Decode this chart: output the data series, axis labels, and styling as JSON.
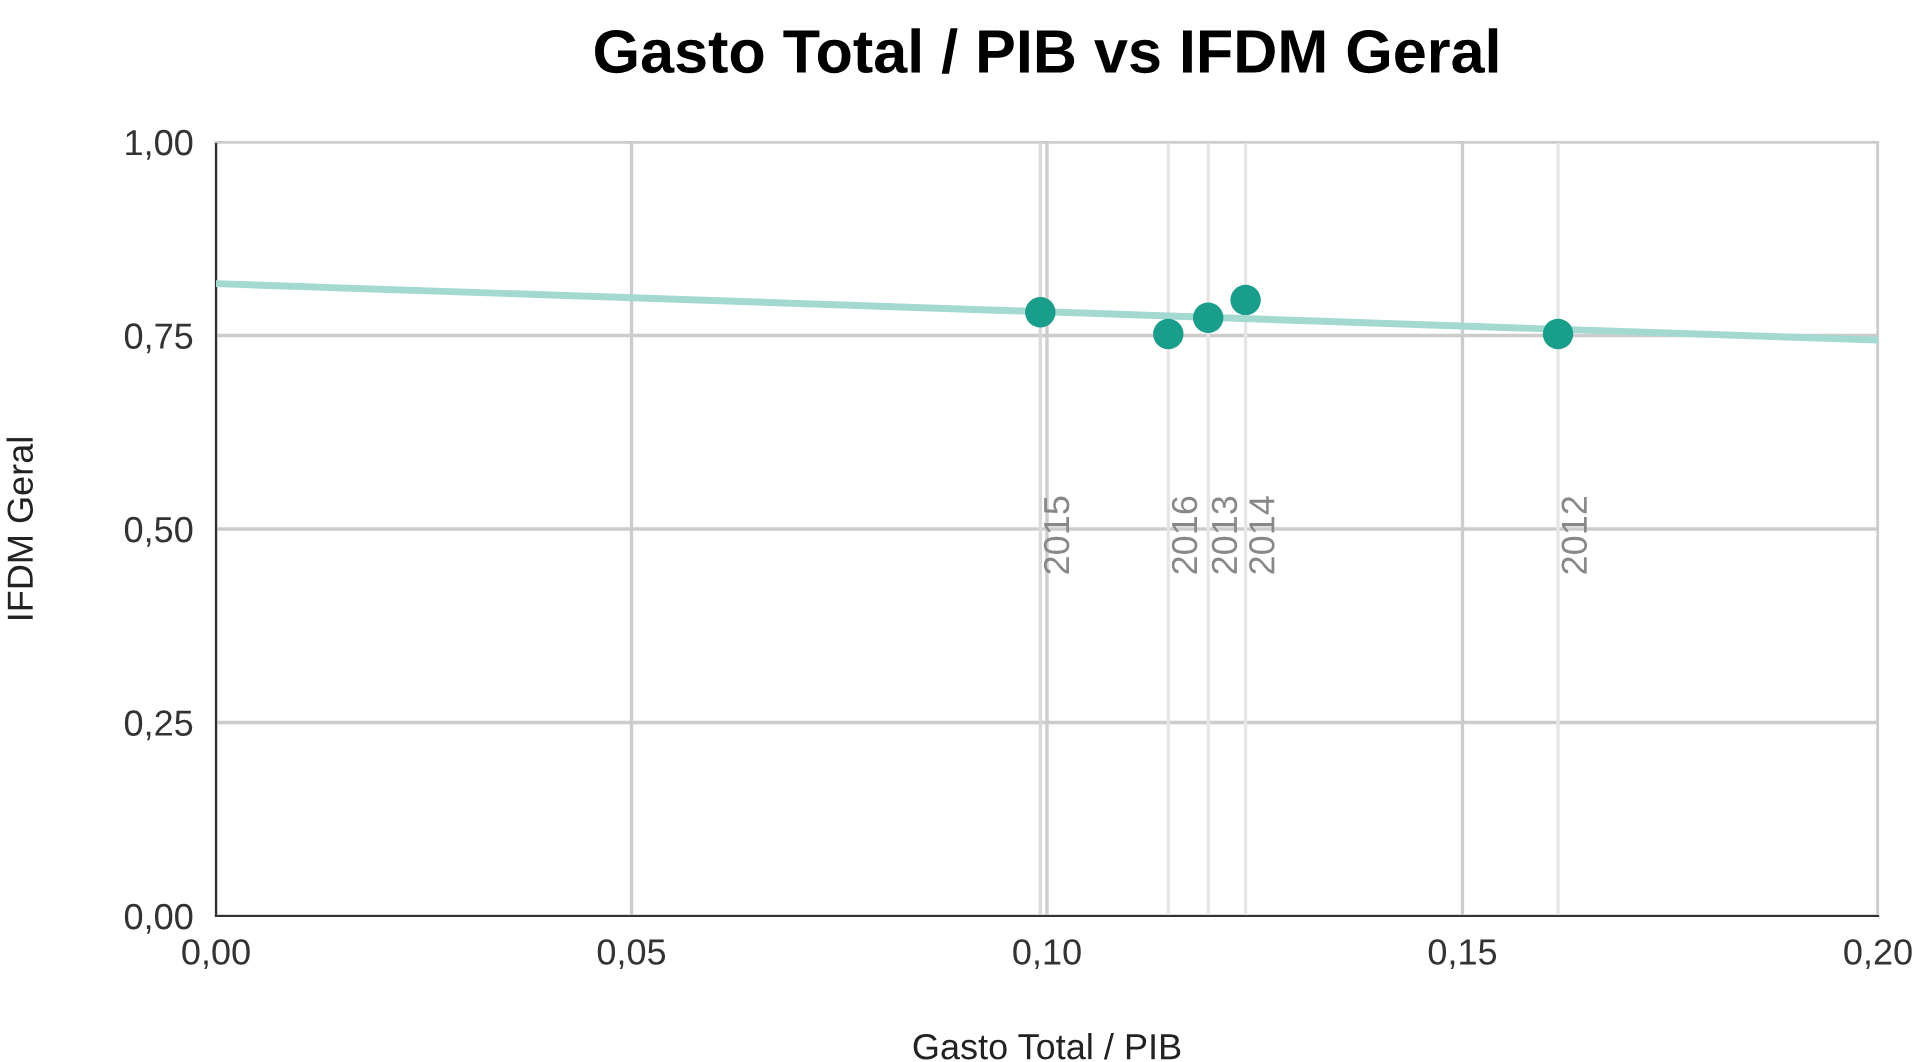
{
  "chart_data": {
    "type": "scatter",
    "title": "Gasto Total / PIB vs IFDM Geral",
    "xlabel": "Gasto Total / PIB",
    "ylabel": "IFDM Geral",
    "series": [
      {
        "color": "#1a9e8c",
        "marker": "circle",
        "x": [
          0.0992,
          0.1146,
          0.1194,
          0.1239,
          0.1615
        ],
        "values": [
          0.78,
          0.752,
          0.773,
          0.796,
          0.752
        ]
      },
      {
        "type": "line",
        "color": "#a3d9d1",
        "x": [
          0.0,
          0.2
        ],
        "values": [
          0.817,
          0.744
        ]
      }
    ],
    "ref_lines": [
      {
        "axis": "x",
        "value": 0.0992,
        "color": "#d9d9d9"
      },
      {
        "axis": "x",
        "value": 0.1146,
        "color": "#e6e6e6"
      },
      {
        "axis": "x",
        "value": 0.1194,
        "color": "#e6e6e6"
      },
      {
        "axis": "x",
        "value": 0.1239,
        "color": "#e6e6e6"
      },
      {
        "axis": "x",
        "value": 0.1615,
        "color": "#e6e6e6"
      }
    ],
    "annotations": [
      {
        "text": "2015",
        "x": 0.0992,
        "y": 0.44
      },
      {
        "text": "2016",
        "x": 0.1146,
        "y": 0.44
      },
      {
        "text": "2013",
        "x": 0.1194,
        "y": 0.44
      },
      {
        "text": "2014",
        "x": 0.1239,
        "y": 0.44
      },
      {
        "text": "2012",
        "x": 0.1615,
        "y": 0.44
      }
    ],
    "xlim": [
      0,
      0.2
    ],
    "ylim": [
      0,
      1
    ],
    "xticks": [
      {
        "value": 0,
        "label": "0,00"
      },
      {
        "value": 0.05,
        "label": "0,05"
      },
      {
        "value": 0.1,
        "label": "0,10"
      },
      {
        "value": 0.15,
        "label": "0,15"
      },
      {
        "value": 0.2,
        "label": "0,20"
      }
    ],
    "yticks": [
      {
        "value": 0,
        "label": "0,00"
      },
      {
        "value": 0.25,
        "label": "0,25"
      },
      {
        "value": 0.5,
        "label": "0,50"
      },
      {
        "value": 0.75,
        "label": "0,75"
      },
      {
        "value": 1,
        "label": "1,00"
      }
    ],
    "grid": true
  }
}
